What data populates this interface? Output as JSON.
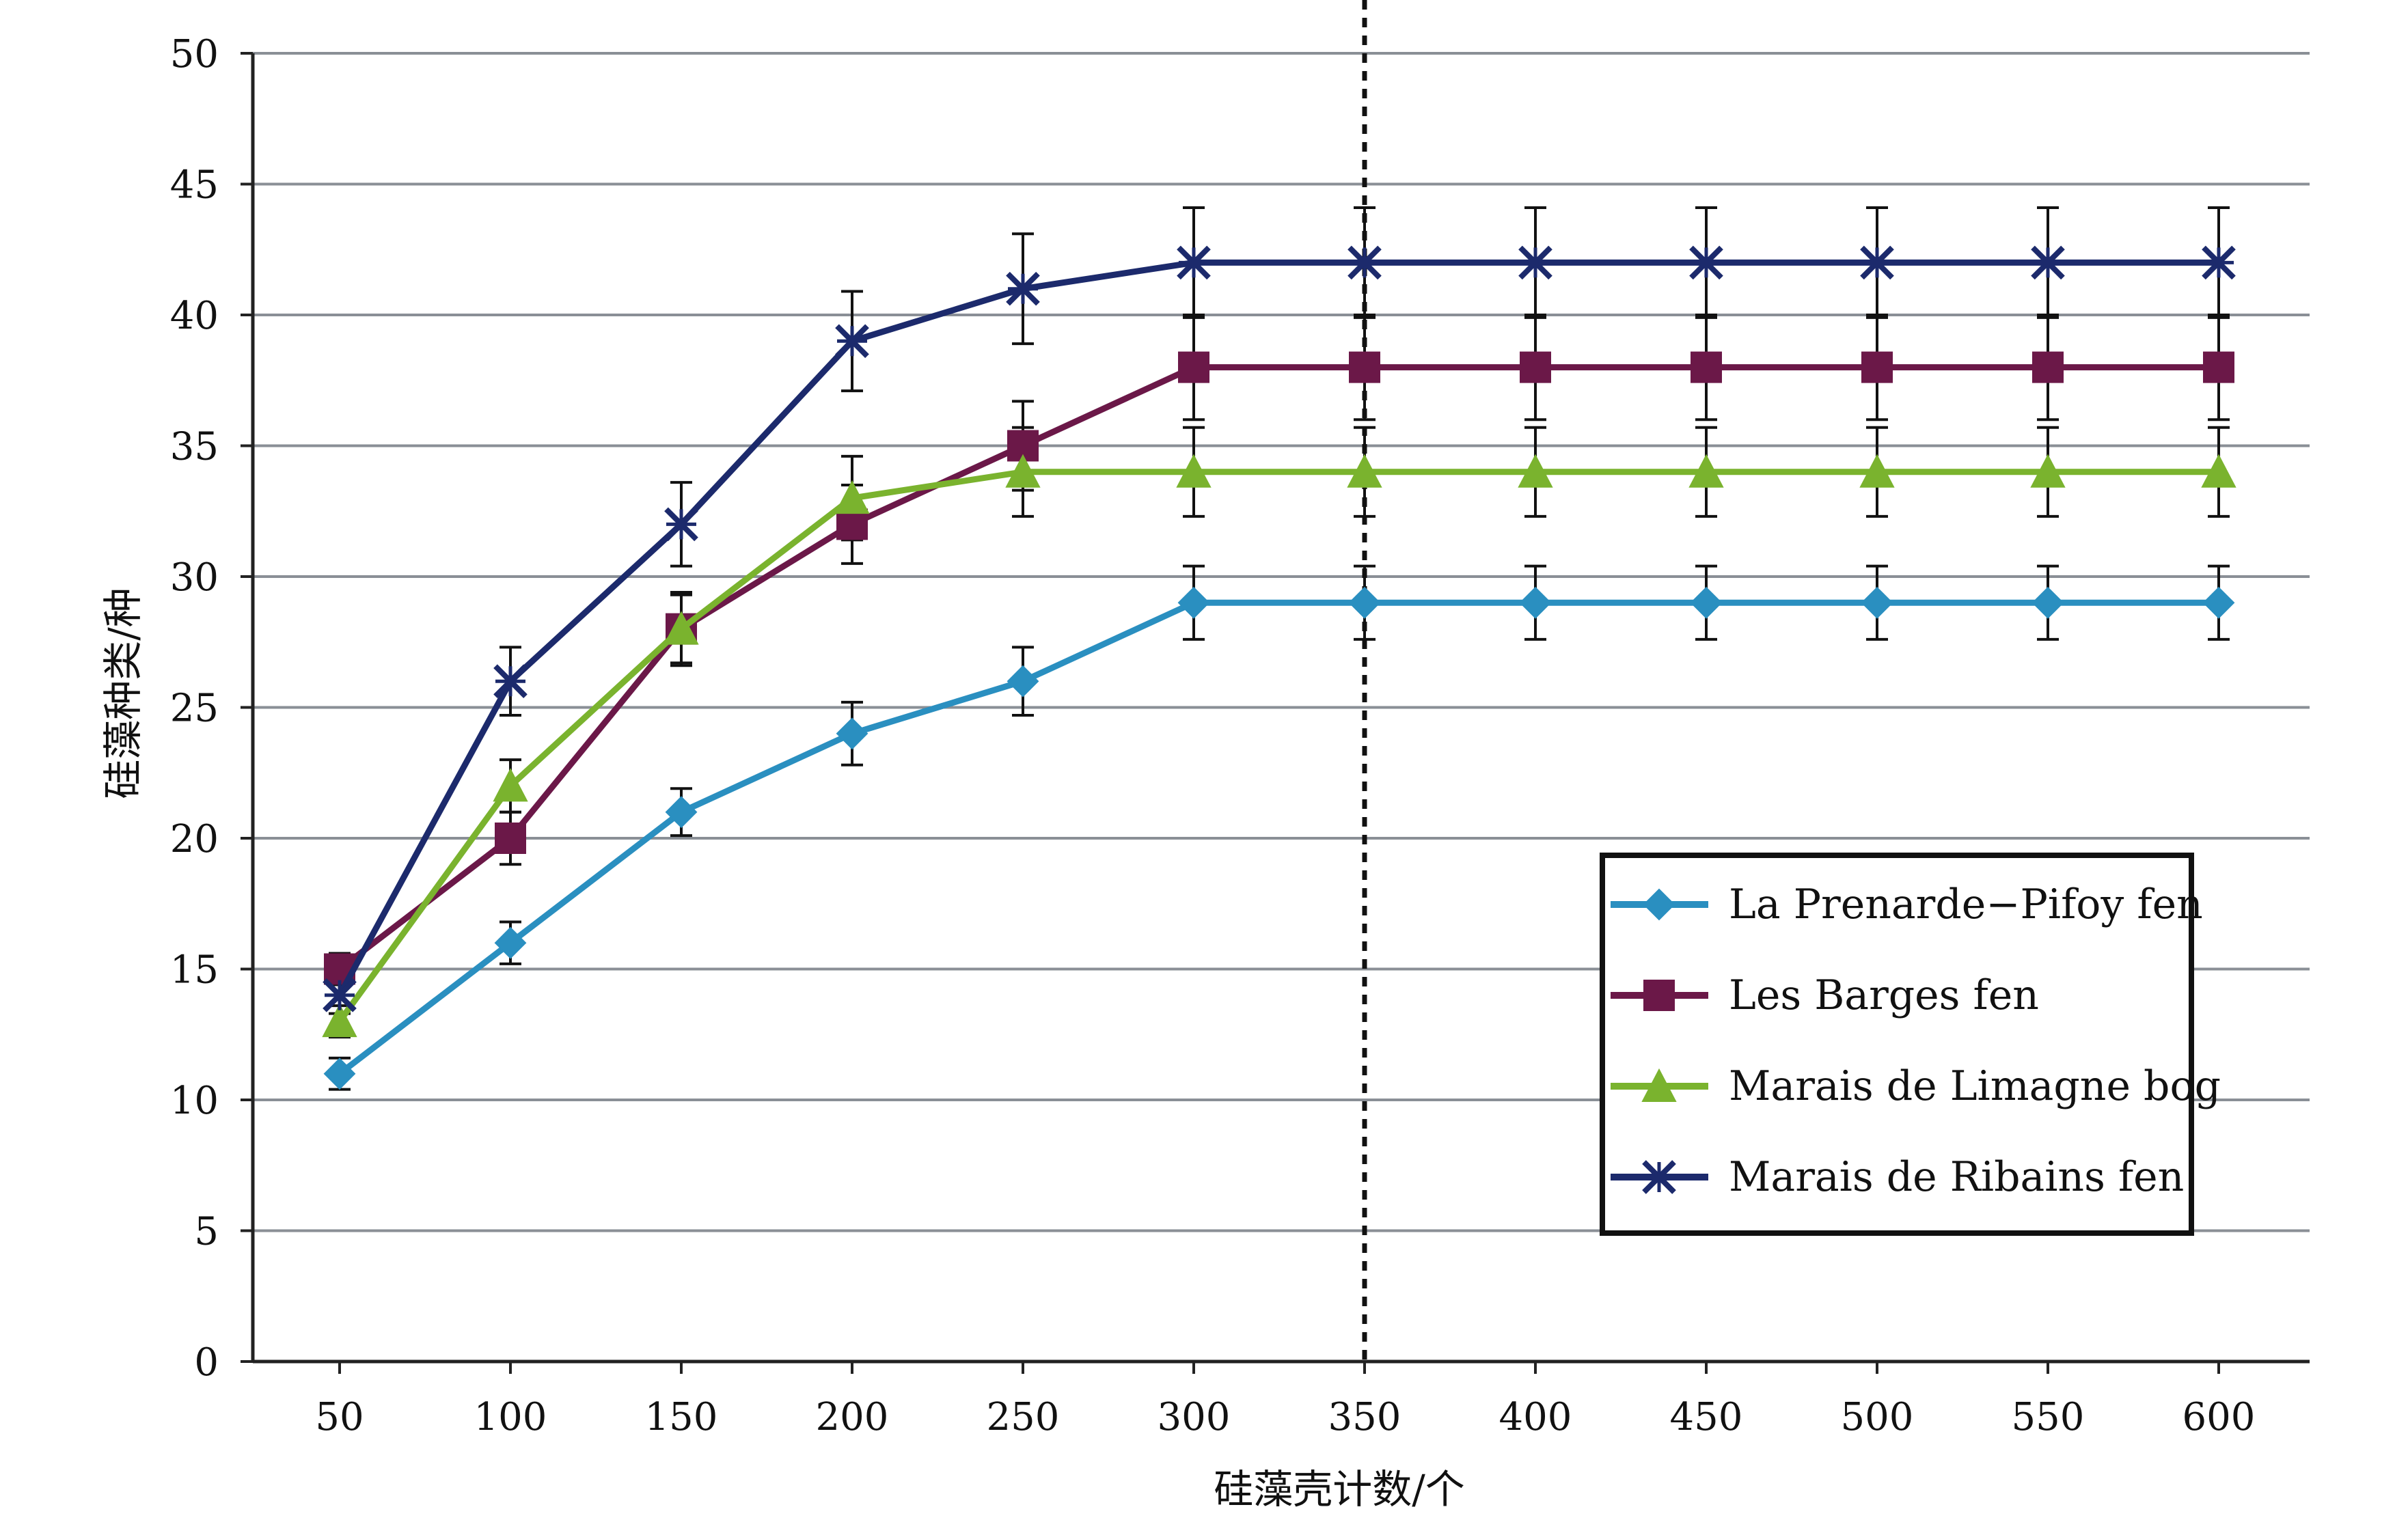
{
  "chart_data": {
    "type": "line",
    "x": [
      50,
      100,
      150,
      200,
      250,
      300,
      350,
      400,
      450,
      500,
      550,
      600
    ],
    "series": [
      {
        "name": "La Prenarde−Pifoy fen",
        "color": "#2a8fc0",
        "marker": "diamond",
        "values": [
          11,
          16,
          21,
          24,
          26,
          29,
          29,
          29,
          29,
          29,
          29,
          29
        ],
        "error": [
          0.6,
          0.8,
          0.9,
          1.2,
          1.3,
          1.4,
          1.4,
          1.4,
          1.4,
          1.4,
          1.4,
          1.4
        ]
      },
      {
        "name": "Les Barges fen",
        "color": "#6b1848",
        "marker": "square",
        "values": [
          15,
          20,
          28,
          32,
          35,
          38,
          38,
          38,
          38,
          38,
          38,
          38
        ],
        "error": [
          0.6,
          1.0,
          1.3,
          1.5,
          1.7,
          2.0,
          2.0,
          2.0,
          2.0,
          2.0,
          2.0,
          2.0
        ]
      },
      {
        "name": "Marais de Limagne bog",
        "color": "#7ab32e",
        "marker": "triangle",
        "values": [
          13,
          22,
          28,
          33,
          34,
          34,
          34,
          34,
          34,
          34,
          34,
          34
        ],
        "error": [
          0.6,
          1.0,
          1.4,
          1.6,
          1.7,
          1.7,
          1.7,
          1.7,
          1.7,
          1.7,
          1.7,
          1.7
        ]
      },
      {
        "name": "Marais de Ribains fen",
        "color": "#1c2a6c",
        "marker": "star",
        "values": [
          14,
          26,
          32,
          39,
          41,
          42,
          42,
          42,
          42,
          42,
          42,
          42
        ],
        "error": [
          0.7,
          1.3,
          1.6,
          1.9,
          2.1,
          2.1,
          2.1,
          2.1,
          2.1,
          2.1,
          2.1,
          2.1
        ]
      }
    ],
    "xlabel": "硅藻壳计数/个",
    "ylabel": "硅藻种类/种",
    "ylim": [
      0,
      50
    ],
    "yticks": [
      0,
      5,
      10,
      15,
      20,
      25,
      30,
      35,
      40,
      45,
      50
    ],
    "grid": true,
    "legend_position": "lower-right",
    "reference_line_x": 350
  }
}
